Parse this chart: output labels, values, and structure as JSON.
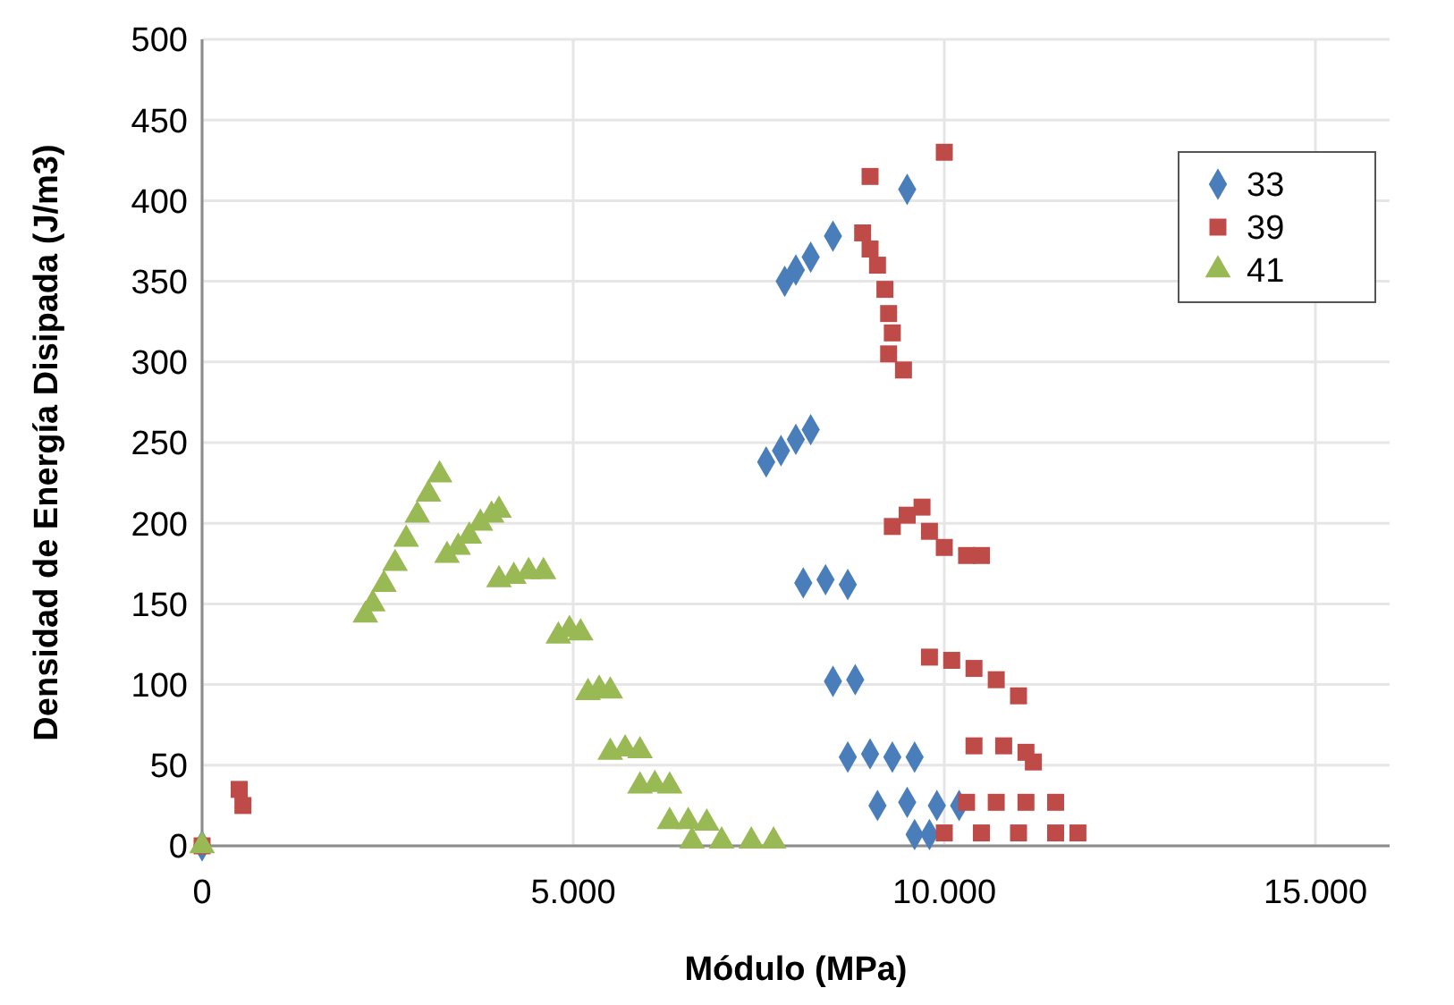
{
  "chart_data": {
    "type": "scatter",
    "xlabel": "Módulo (MPa)",
    "ylabel": "Densidad de Energía Disipada (J/m3)",
    "xlim": [
      0,
      16000
    ],
    "xticks": [
      0,
      {
        "value": 5000,
        "label": "5.000"
      },
      {
        "value": 10000,
        "label": "10.000"
      },
      {
        "value": 15000,
        "label": "15.000"
      }
    ],
    "ylim": [
      0,
      500
    ],
    "yticks": [
      0,
      50,
      100,
      150,
      200,
      250,
      300,
      350,
      400,
      450,
      500
    ],
    "grid": true,
    "legend": "top right",
    "series": [
      {
        "name": "33",
        "color": "#4a7ebb",
        "marker": "diamond",
        "x": [
          0,
          9500,
          7850,
          8000,
          8200,
          8500,
          7600,
          7800,
          8000,
          8200,
          8100,
          8400,
          8700,
          8500,
          8800,
          8700,
          9000,
          9300,
          9600,
          9100,
          9500,
          9900,
          10200,
          9600,
          9800
        ],
        "values": [
          0,
          407,
          350,
          357,
          365,
          378,
          238,
          245,
          252,
          258,
          163,
          165,
          162,
          102,
          103,
          55,
          57,
          55,
          55,
          25,
          27,
          25,
          25,
          7,
          7
        ]
      },
      {
        "name": "39",
        "color": "#be4b48",
        "marker": "square",
        "x": [
          0,
          500,
          550,
          9000,
          10000,
          8900,
          9000,
          9100,
          9200,
          9250,
          9300,
          9250,
          9450,
          9300,
          9500,
          9700,
          9800,
          10000,
          10300,
          10500,
          9800,
          10100,
          10400,
          10700,
          11000,
          10400,
          10800,
          11100,
          11200,
          10300,
          10700,
          11100,
          11500,
          10000,
          10500,
          11000,
          11500,
          11800
        ],
        "values": [
          0,
          35,
          25,
          415,
          430,
          380,
          370,
          360,
          345,
          330,
          318,
          305,
          295,
          198,
          205,
          210,
          195,
          185,
          180,
          180,
          117,
          115,
          110,
          103,
          93,
          62,
          62,
          58,
          52,
          27,
          27,
          27,
          27,
          8,
          8,
          8,
          8,
          8
        ]
      },
      {
        "name": "41",
        "color": "#98b954",
        "marker": "triangle",
        "x": [
          0,
          2200,
          2300,
          2450,
          2600,
          2750,
          2900,
          3050,
          3200,
          3300,
          3450,
          3600,
          3750,
          3900,
          4000,
          4000,
          4200,
          4400,
          4600,
          4800,
          4950,
          5100,
          5200,
          5350,
          5500,
          5500,
          5700,
          5900,
          5900,
          6100,
          6300,
          6300,
          6550,
          6800,
          6600,
          7000,
          7400,
          7700
        ],
        "values": [
          0,
          143,
          150,
          162,
          175,
          190,
          205,
          218,
          230,
          180,
          185,
          192,
          200,
          205,
          208,
          165,
          167,
          170,
          170,
          130,
          134,
          132,
          95,
          97,
          96,
          58,
          60,
          59,
          37,
          38,
          37,
          15,
          15,
          14,
          3,
          3,
          3,
          3
        ]
      }
    ]
  }
}
